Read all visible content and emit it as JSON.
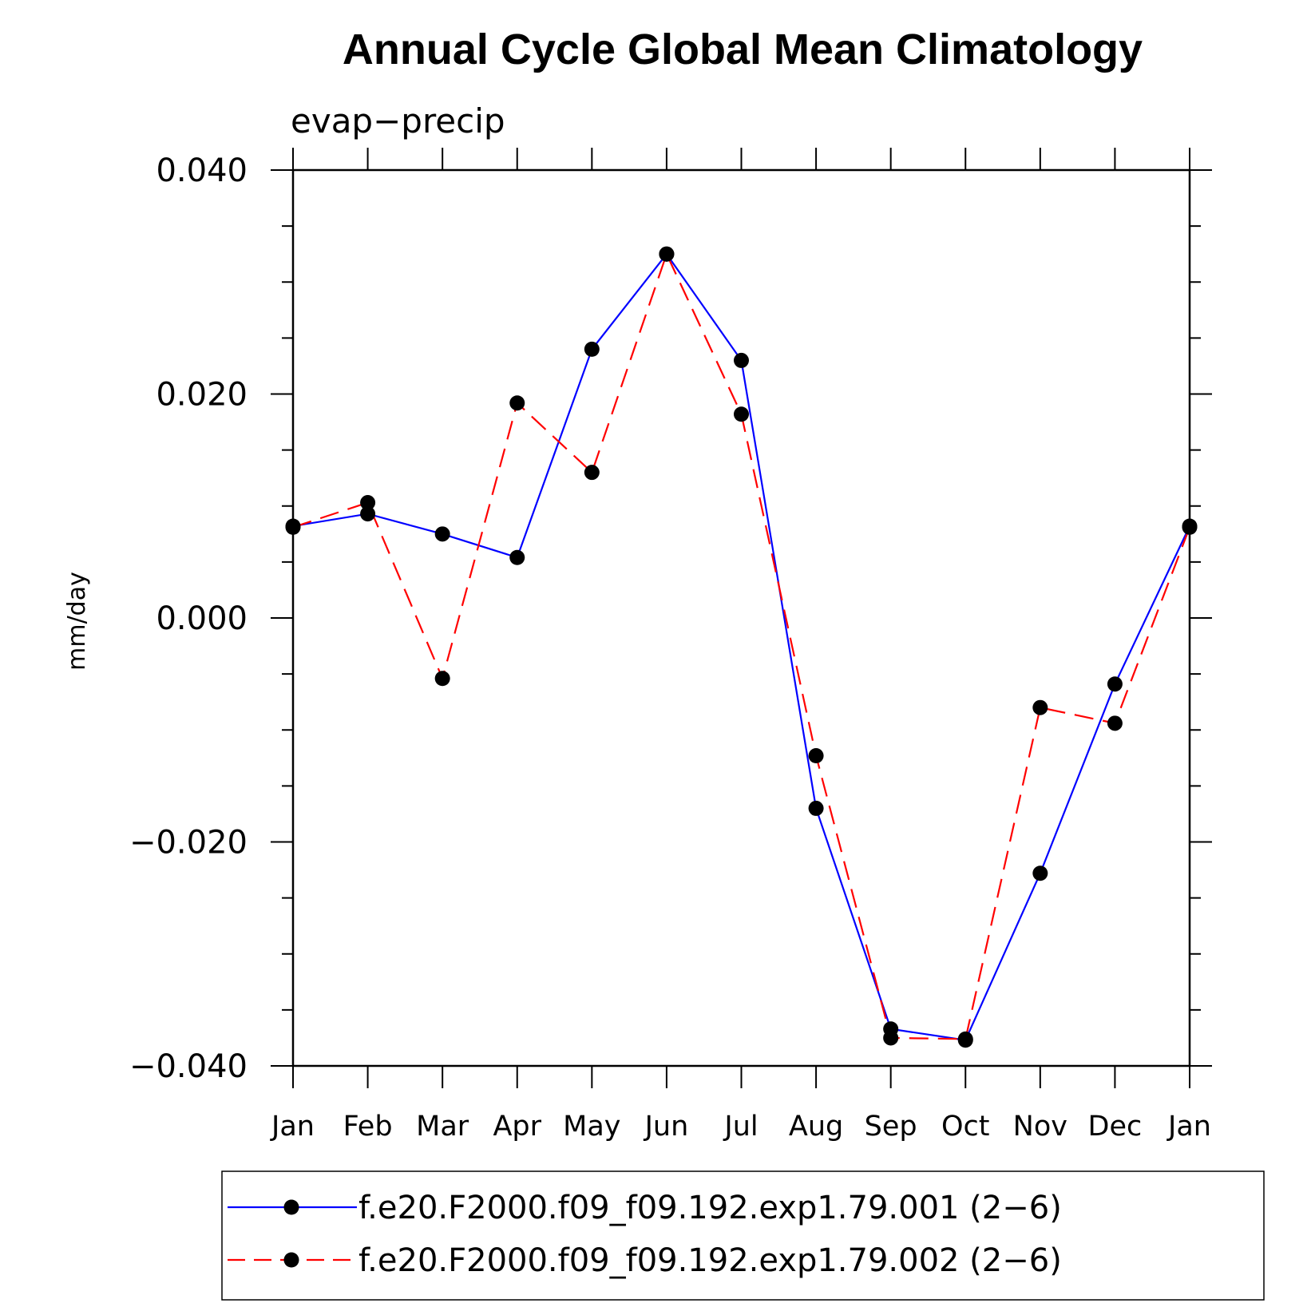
{
  "chart_data": {
    "type": "line",
    "title": "Annual Cycle Global Mean Climatology",
    "subtitle": "evap−precip",
    "ylabel": "mm/day",
    "xlabel": "",
    "categories": [
      "Jan",
      "Feb",
      "Mar",
      "Apr",
      "May",
      "Jun",
      "Jul",
      "Aug",
      "Sep",
      "Oct",
      "Nov",
      "Dec",
      "Jan"
    ],
    "ylim": [
      -0.04,
      0.04
    ],
    "yticks": [
      "0.040",
      "0.020",
      "0.000",
      "−0.020",
      "−0.040"
    ],
    "ytick_values": [
      0.04,
      0.02,
      0.0,
      -0.02,
      -0.04
    ],
    "grid": false,
    "legend_position": "bottom",
    "series": [
      {
        "name": "f.e20.F2000.f09_f09.192.exp1.79.001 (2−6)",
        "color": "#0000ff",
        "dash": "solid",
        "marker": "filled-circle",
        "values": [
          0.0082,
          0.0093,
          0.0075,
          0.0054,
          0.024,
          0.0325,
          0.023,
          -0.017,
          -0.0367,
          -0.0377,
          -0.0228,
          -0.0059,
          0.0082
        ]
      },
      {
        "name": "f.e20.F2000.f09_f09.192.exp1.79.002 (2−6)",
        "color": "#ff0000",
        "dash": "dashed",
        "marker": "filled-circle",
        "values": [
          0.0081,
          0.0103,
          -0.0054,
          0.0192,
          0.013,
          0.0325,
          0.0182,
          -0.0123,
          -0.0375,
          -0.0376,
          -0.008,
          -0.0094,
          0.0081
        ]
      }
    ]
  }
}
